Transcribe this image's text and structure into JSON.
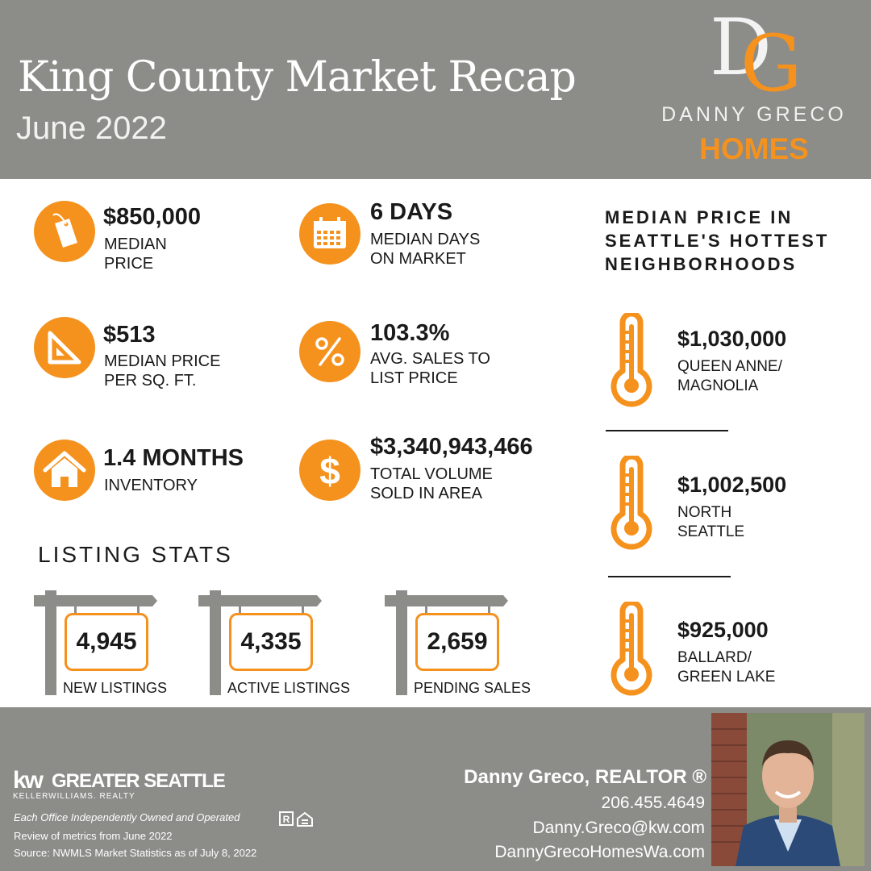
{
  "header": {
    "title": "King County Market Recap",
    "subtitle": "June 2022",
    "logo_monogram": "DG",
    "logo_name": "DANNY GRECO",
    "logo_homes": "HOMES"
  },
  "stats": [
    {
      "value": "$850,000",
      "label1": "MEDIAN",
      "label2": "PRICE",
      "icon": "price-tag-icon"
    },
    {
      "value": "6 DAYS",
      "label1": "MEDIAN DAYS",
      "label2": "ON MARKET",
      "icon": "calendar-icon"
    },
    {
      "value": "$513",
      "label1": "MEDIAN PRICE",
      "label2": "PER SQ. FT.",
      "icon": "set-square-icon"
    },
    {
      "value": "103.3%",
      "label1": "AVG. SALES TO",
      "label2": "LIST PRICE",
      "icon": "percent-icon"
    },
    {
      "value": "1.4 MONTHS",
      "label1": "INVENTORY",
      "label2": "",
      "icon": "house-icon"
    },
    {
      "value": "$3,340,943,466",
      "label1": "TOTAL VOLUME",
      "label2": "SOLD IN AREA",
      "icon": "dollar-icon"
    }
  ],
  "listing": {
    "heading": "LISTING STATS",
    "items": [
      {
        "value": "4,945",
        "label": "NEW LISTINGS"
      },
      {
        "value": "4,335",
        "label": "ACTIVE LISTINGS"
      },
      {
        "value": "2,659",
        "label": "PENDING SALES"
      }
    ]
  },
  "neighborhoods": {
    "heading_line1": "MEDIAN PRICE IN",
    "heading_line2": "SEATTLE'S HOTTEST",
    "heading_line3": "NEIGHBORHOODS",
    "items": [
      {
        "price": "$1,030,000",
        "name1": "QUEEN ANNE/",
        "name2": "MAGNOLIA"
      },
      {
        "price": "$1,002,500",
        "name1": "NORTH",
        "name2": "SEATTLE"
      },
      {
        "price": "$925,000",
        "name1": "BALLARD/",
        "name2": "GREEN LAKE"
      }
    ]
  },
  "footer": {
    "kw_mark": "kw",
    "kw_office": "GREATER SEATTLE",
    "kw_company": "KELLERWILLIAMS. REALTY",
    "office_note": "Each Office Independently Owned and Operated",
    "review_note": "Review of metrics from June 2022",
    "source_note": "Source: NWMLS Market Statistics as of July 8, 2022",
    "agent_name": "Danny Greco, REALTOR ®",
    "phone": "206.455.4649",
    "email": "Danny.Greco@kw.com",
    "website": "DannyGrecoHomesWa.com"
  },
  "colors": {
    "accent": "#f5921e",
    "gray": "#8c8c88",
    "text": "#1a1a1a"
  }
}
